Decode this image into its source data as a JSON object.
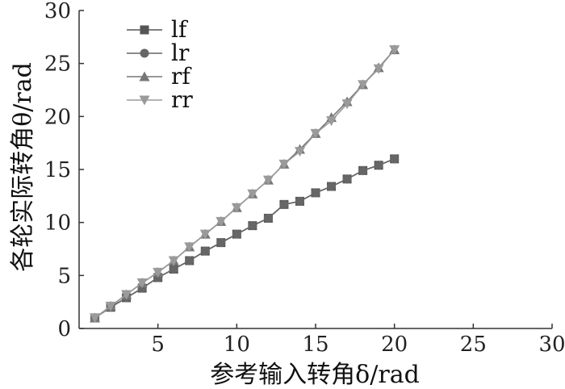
{
  "chart_data": {
    "type": "line",
    "xlabel": "参考输入转角δ/rad",
    "ylabel": "各轮实际转角θ/rad",
    "xlim": [
      0,
      30
    ],
    "ylim": [
      0,
      30
    ],
    "xticks": [
      "5",
      "10",
      "15",
      "20",
      "25",
      "30"
    ],
    "yticks": [
      "0",
      "5",
      "10",
      "15",
      "20",
      "25",
      "30"
    ],
    "grid": false,
    "legend_position": "top-left",
    "x": [
      1,
      2,
      3,
      4,
      5,
      6,
      7,
      8,
      9,
      10,
      11,
      12,
      13,
      14,
      15,
      16,
      17,
      18,
      19,
      20
    ],
    "series": [
      {
        "name": "lf",
        "marker": "square",
        "color": "#555555",
        "values": [
          1.0,
          2.0,
          2.9,
          3.8,
          4.8,
          5.6,
          6.4,
          7.3,
          8.1,
          8.9,
          9.7,
          10.4,
          11.7,
          12.0,
          12.8,
          13.4,
          14.1,
          14.9,
          15.4,
          16.0
        ]
      },
      {
        "name": "lr",
        "marker": "circle",
        "color": "#666666",
        "values": [
          1.0,
          2.0,
          2.9,
          3.8,
          4.8,
          5.6,
          6.4,
          7.3,
          8.1,
          8.9,
          9.7,
          10.4,
          11.7,
          12.0,
          12.8,
          13.4,
          14.1,
          14.9,
          15.4,
          16.0
        ]
      },
      {
        "name": "rf",
        "marker": "triangle-up",
        "color": "#777777",
        "values": [
          1.0,
          2.1,
          3.2,
          4.3,
          5.3,
          6.4,
          7.7,
          8.9,
          10.1,
          11.4,
          12.7,
          14.0,
          15.5,
          16.9,
          18.4,
          19.9,
          21.4,
          23.0,
          24.6,
          26.3
        ]
      },
      {
        "name": "rr",
        "marker": "triangle-down",
        "color": "#9a9a9a",
        "values": [
          1.0,
          2.1,
          3.2,
          4.3,
          5.3,
          6.4,
          7.7,
          8.9,
          10.1,
          11.4,
          12.7,
          14.0,
          15.5,
          16.7,
          18.4,
          19.6,
          21.2,
          23.0,
          24.5,
          26.3
        ]
      }
    ]
  }
}
